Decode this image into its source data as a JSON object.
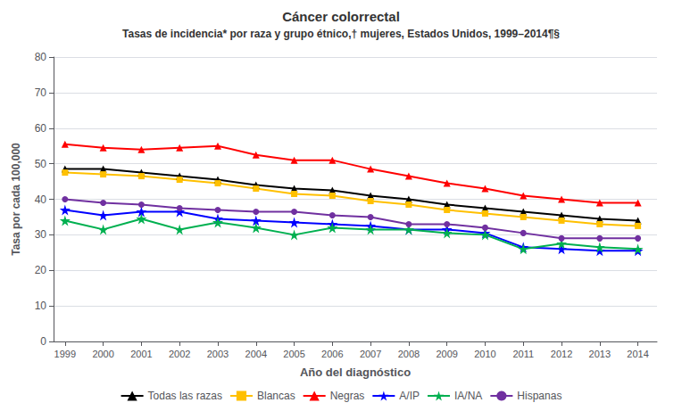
{
  "chart_data": {
    "type": "line",
    "title": "Cáncer colorrectal",
    "subtitle": "Tasas de incidencia* por raza y grupo étnico,† mujeres, Estados Unidos, 1999–2014¶§",
    "xlabel": "Año del diagnóstico",
    "ylabel": "Tasa por cada 100,000",
    "x": [
      1999,
      2000,
      2001,
      2002,
      2003,
      2004,
      2005,
      2006,
      2007,
      2008,
      2009,
      2010,
      2011,
      2012,
      2013,
      2014
    ],
    "xlim": [
      1998.7,
      2014.5
    ],
    "xticks": [
      1999,
      2000,
      2001,
      2002,
      2003,
      2004,
      2005,
      2006,
      2007,
      2008,
      2009,
      2010,
      2011,
      2012,
      2013,
      2014
    ],
    "ylim": [
      0,
      80
    ],
    "yticks": [
      0,
      10,
      20,
      30,
      40,
      50,
      60,
      70,
      80
    ],
    "grid": true,
    "legend": "bottom",
    "series": [
      {
        "name": "Todas las razas",
        "color": "#000000",
        "marker": "triangle",
        "values": [
          48.5,
          48.5,
          47.5,
          46.5,
          45.5,
          44.0,
          43.0,
          42.5,
          41.0,
          40.0,
          38.5,
          37.5,
          36.5,
          35.5,
          34.5,
          34.0
        ]
      },
      {
        "name": "Blancas",
        "color": "#FFC000",
        "marker": "square",
        "values": [
          47.5,
          47.0,
          46.5,
          45.5,
          44.5,
          43.0,
          41.5,
          41.0,
          39.5,
          38.5,
          37.0,
          36.0,
          35.0,
          34.0,
          33.0,
          32.5
        ]
      },
      {
        "name": "Negras",
        "color": "#FF0000",
        "marker": "triangle",
        "values": [
          55.5,
          54.5,
          54.0,
          54.5,
          55.0,
          52.5,
          51.0,
          51.0,
          48.5,
          46.5,
          44.5,
          43.0,
          41.0,
          40.0,
          39.0,
          39.0
        ]
      },
      {
        "name": "A/IP",
        "color": "#0000FF",
        "marker": "star",
        "values": [
          37.0,
          35.5,
          36.5,
          36.5,
          34.5,
          34.0,
          33.5,
          33.0,
          32.5,
          31.5,
          31.5,
          30.5,
          26.5,
          26.0,
          25.5,
          25.5
        ]
      },
      {
        "name": "IA/NA",
        "color": "#00B050",
        "marker": "star",
        "values": [
          34.0,
          31.5,
          34.5,
          31.5,
          33.5,
          32.0,
          30.0,
          32.0,
          31.5,
          31.5,
          30.5,
          30.0,
          26.0,
          27.5,
          26.5,
          26.0
        ]
      },
      {
        "name": "Hispanas",
        "color": "#7030A0",
        "marker": "circle",
        "values": [
          40.0,
          39.0,
          38.5,
          37.5,
          37.0,
          36.5,
          36.5,
          35.5,
          35.0,
          33.0,
          33.0,
          32.0,
          30.5,
          29.0,
          29.0,
          29.0
        ]
      }
    ]
  }
}
